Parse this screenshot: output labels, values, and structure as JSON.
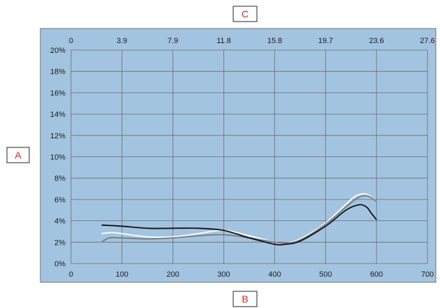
{
  "chart_data": {
    "type": "line",
    "title": "",
    "axis_labels": {
      "y": "A",
      "x_bottom": "B",
      "x_top": "C"
    },
    "xlim": [
      0,
      700
    ],
    "ylim": [
      0,
      20
    ],
    "x_ticks": [
      0,
      100,
      200,
      300,
      400,
      500,
      600,
      700
    ],
    "x_tick_labels": [
      "0",
      "100",
      "200",
      "300",
      "400",
      "500",
      "600",
      "700"
    ],
    "x2_ticks": [
      0,
      100,
      200,
      300,
      400,
      500,
      600,
      700
    ],
    "x2_tick_labels": [
      "0",
      "3.9",
      "7.9",
      "11.8",
      "15.8",
      "19.7",
      "23.6",
      "27.6"
    ],
    "y_ticks": [
      0,
      2,
      4,
      6,
      8,
      10,
      12,
      14,
      16,
      18,
      20
    ],
    "y_tick_labels": [
      "0%",
      "2%",
      "4%",
      "6%",
      "8%",
      "10%",
      "12%",
      "14%",
      "16%",
      "18%",
      "20%"
    ],
    "grid": true,
    "plot_background": "#a3c4e0",
    "grid_color": "#6a6a6a",
    "series": [
      {
        "color": "#ffffff",
        "x": [
          60,
          80,
          100,
          150,
          200,
          250,
          300,
          350,
          400,
          420,
          450,
          500,
          550,
          570,
          585,
          600
        ],
        "y": [
          2.8,
          2.9,
          2.8,
          2.5,
          2.5,
          2.8,
          3.1,
          2.6,
          2.0,
          1.9,
          2.3,
          3.8,
          6.0,
          6.5,
          6.4,
          5.8
        ]
      },
      {
        "color": "#7a7a7a",
        "x": [
          60,
          75,
          100,
          150,
          200,
          250,
          300,
          350,
          400,
          420,
          450,
          500,
          550,
          570,
          585,
          600
        ],
        "y": [
          2.0,
          2.4,
          2.4,
          2.3,
          2.4,
          2.6,
          2.7,
          2.4,
          2.0,
          1.9,
          2.2,
          3.7,
          5.7,
          6.3,
          6.3,
          5.8
        ]
      },
      {
        "color": "#111111",
        "x": [
          60,
          100,
          150,
          200,
          250,
          300,
          350,
          400,
          420,
          450,
          500,
          540,
          565,
          580,
          590,
          600
        ],
        "y": [
          3.6,
          3.5,
          3.3,
          3.3,
          3.3,
          3.1,
          2.4,
          1.8,
          1.8,
          2.1,
          3.5,
          5.0,
          5.5,
          5.3,
          4.7,
          4.1
        ]
      }
    ]
  }
}
